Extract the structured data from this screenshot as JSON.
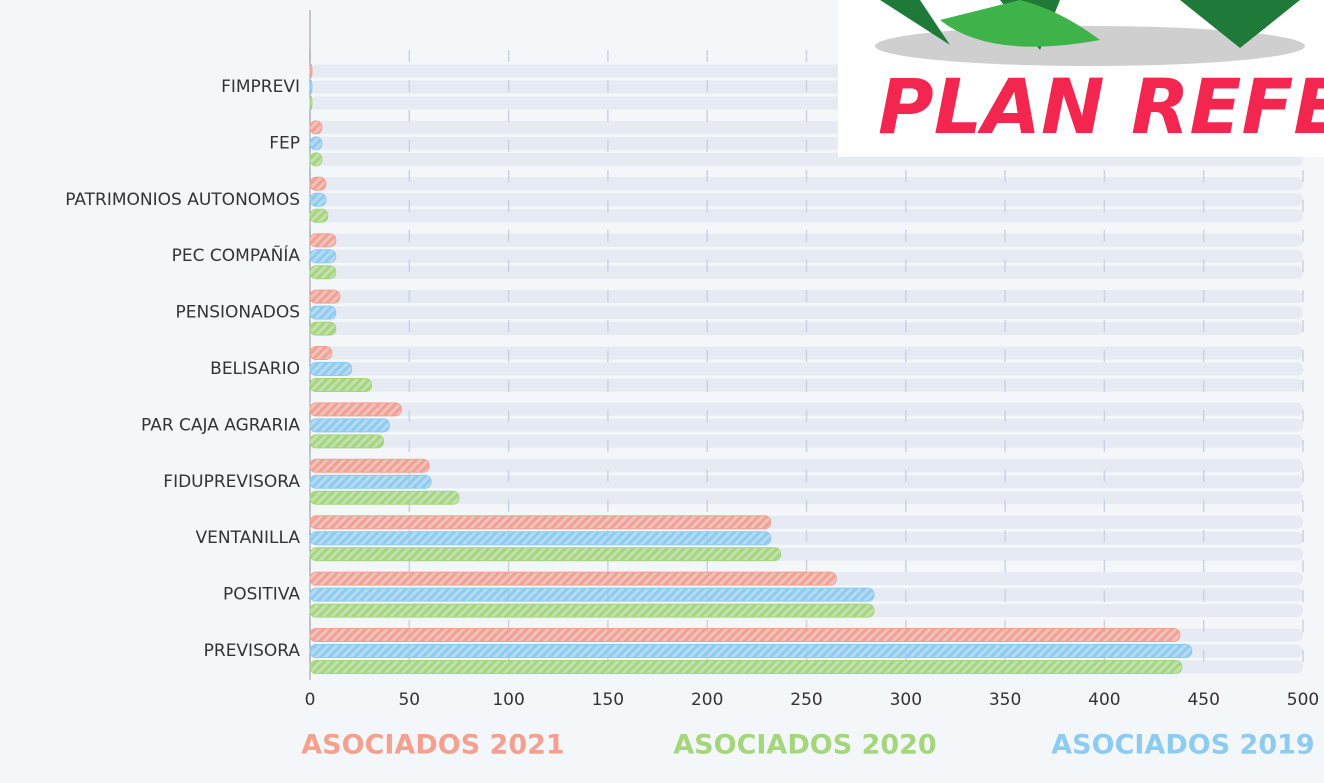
{
  "banner": "PLAN REFE",
  "chart_data": {
    "type": "hbar",
    "categories": [
      "FIMPREVI",
      "FEP",
      "PATRIMONIOS AUTONOMOS",
      "PEC COMPAÑÍA",
      "PENSIONADOS",
      "BELISARIO",
      "PAR CAJA AGRARIA",
      "FIDUPREVISORA",
      "VENTANILLA",
      "POSITIVA",
      "PREVISORA"
    ],
    "series": [
      {
        "name": "ASOCIADOS 2021",
        "color": "#f4a090",
        "values": [
          1,
          6,
          8,
          13,
          15,
          11,
          46,
          60,
          232,
          265,
          438
        ]
      },
      {
        "name": "ASOCIADOS 2020",
        "color": "#a6d67c",
        "values": [
          1,
          6,
          9,
          13,
          13,
          31,
          37,
          75,
          237,
          284,
          439
        ]
      },
      {
        "name": "ASOCIADOS 2019",
        "color": "#8ecbf0",
        "values": [
          1,
          6,
          8,
          13,
          13,
          21,
          40,
          61,
          232,
          284,
          444
        ]
      }
    ],
    "xlim": [
      0,
      500
    ],
    "xticks": [
      0,
      50,
      100,
      150,
      200,
      250,
      300,
      350,
      400,
      450,
      500
    ],
    "grid": true
  }
}
